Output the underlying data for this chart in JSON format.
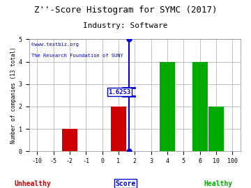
{
  "title": "Z''-Score Histogram for SYMC (2017)",
  "subtitle": "Industry: Software",
  "ylabel": "Number of companies (13 total)",
  "xlabel_center": "Score",
  "xlabel_left": "Unhealthy",
  "xlabel_right": "Healthy",
  "watermark_line1": "©www.textbiz.org",
  "watermark_line2": "The Research Foundation of SUNY",
  "tick_labels": [
    "-10",
    "-5",
    "-2",
    "-1",
    "0",
    "1",
    "2",
    "3",
    "4",
    "5",
    "6",
    "10",
    "100"
  ],
  "tick_indices": [
    0,
    1,
    2,
    3,
    4,
    5,
    6,
    7,
    8,
    9,
    10,
    11,
    12
  ],
  "bar_indices": [
    2,
    5,
    8,
    10,
    11
  ],
  "bar_heights": [
    1,
    2,
    4,
    4,
    2
  ],
  "bar_colors": [
    "#cc0000",
    "#cc0000",
    "#00aa00",
    "#00aa00",
    "#00aa00"
  ],
  "bar_width": 0.95,
  "zscore_marker_idx": 5.6253,
  "zscore_label": "1.6253",
  "xlim": [
    -0.5,
    12.5
  ],
  "ylim": [
    0,
    5
  ],
  "ytick_positions": [
    0,
    1,
    2,
    3,
    4,
    5
  ],
  "grid_color": "#aaaaaa",
  "bg_color": "#ffffff",
  "title_color": "#000000",
  "title_fontsize": 9,
  "subtitle_fontsize": 8,
  "marker_color": "#0000cc",
  "unhealthy_color": "#cc0000",
  "healthy_color": "#00aa00",
  "score_color": "#0000cc"
}
